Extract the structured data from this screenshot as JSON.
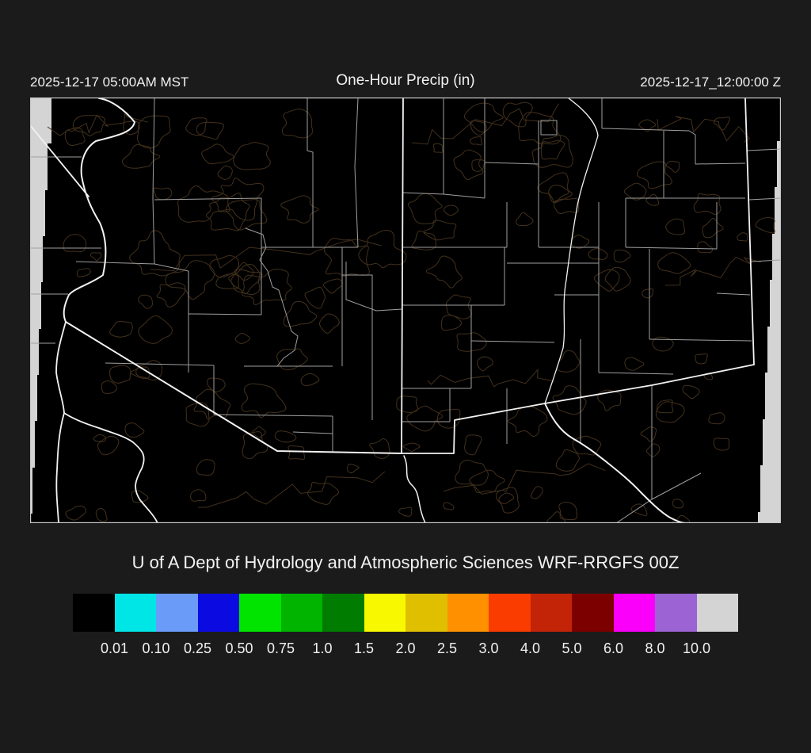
{
  "header": {
    "left_timestamp": "2025-12-17 05:00AM MST",
    "title": "One-Hour Precip (in)",
    "right_timestamp": "2025-12-17_12:00:00 Z"
  },
  "footer": {
    "institution": "U of A Dept of Hydrology and Atmospheric Sciences WRF-RRGFS 00Z"
  },
  "colorbar": {
    "tick_labels": [
      "0.01",
      "0.10",
      "0.25",
      "0.50",
      "0.75",
      "1.0",
      "1.5",
      "2.0",
      "2.5",
      "3.0",
      "4.0",
      "5.0",
      "6.0",
      "8.0",
      "10.0"
    ],
    "cell_colors": [
      "#000000",
      "#00e6e6",
      "#6b9bf8",
      "#0b0be1",
      "#00e400",
      "#00b400",
      "#007d00",
      "#f8f800",
      "#e0bf00",
      "#ff9100",
      "#fa3c00",
      "#c32408",
      "#7d0000",
      "#fa00fa",
      "#9b63d3",
      "#d4d4d4"
    ]
  },
  "map": {
    "region": "Arizona and New Mexico with county boundaries",
    "colors": {
      "background": "#000000",
      "domain_edge": "#d4d4d4",
      "state_border": "#f2f2f2",
      "county_border": "#9f9f9f",
      "terrain_contour": "#42301c",
      "frame": "#c8c8c8"
    }
  },
  "page": {
    "background": "#1b1b1b",
    "text_color": "#f2f2f2"
  }
}
